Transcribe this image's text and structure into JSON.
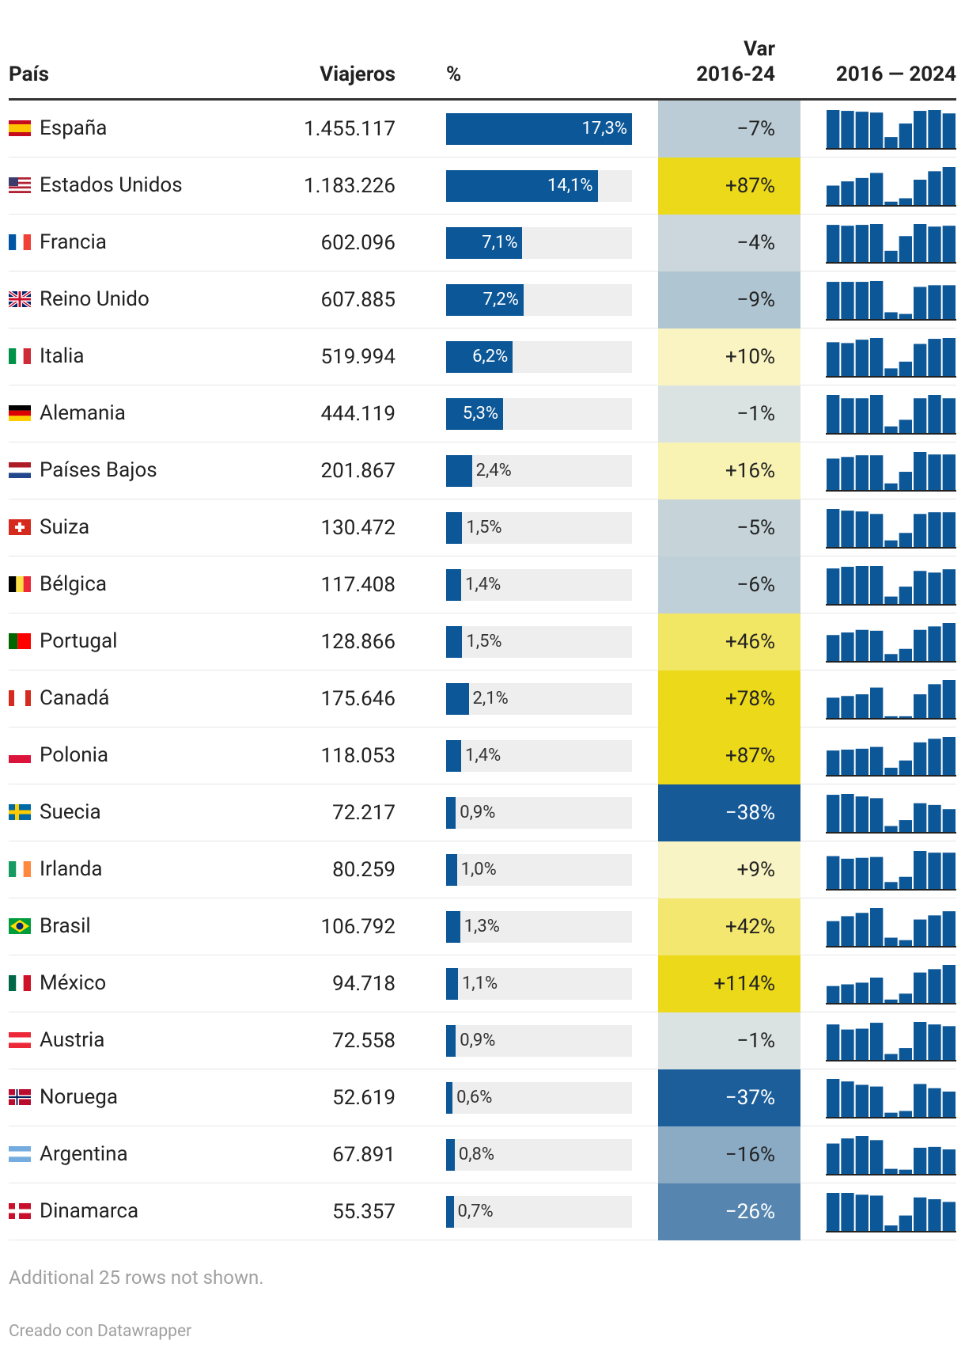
{
  "header": {
    "country": "País",
    "travelers": "Viajeros",
    "pct": "%",
    "var_line1": "Var",
    "var_line2": "2016-24",
    "spark": "2016 — 2024"
  },
  "rows": [
    {
      "country": "España",
      "travelers": "1.455.117",
      "pct": 17.3,
      "pct_label": "17,3%",
      "var": -7,
      "var_label": "−7%",
      "spark": [
        45,
        44,
        43,
        42,
        13,
        29,
        44,
        45,
        41
      ]
    },
    {
      "country": "Estados Unidos",
      "travelers": "1.183.226",
      "pct": 14.1,
      "pct_label": "14,1%",
      "var": 87,
      "var_label": "+87%",
      "spark": [
        23,
        28,
        32,
        38,
        4,
        8,
        30,
        40,
        45
      ]
    },
    {
      "country": "Francia",
      "travelers": "602.096",
      "pct": 7.1,
      "pct_label": "7,1%",
      "var": -4,
      "var_label": "−4%",
      "spark": [
        43,
        42,
        43,
        44,
        13,
        30,
        44,
        41,
        42
      ]
    },
    {
      "country": "Reino Unido",
      "travelers": "607.885",
      "pct": 7.2,
      "pct_label": "7,2%",
      "var": -9,
      "var_label": "−9%",
      "spark": [
        44,
        44,
        44,
        45,
        8,
        6,
        38,
        40,
        40
      ]
    },
    {
      "country": "Italia",
      "travelers": "519.994",
      "pct": 6.2,
      "pct_label": "6,2%",
      "var": 10,
      "var_label": "+10%",
      "spark": [
        40,
        39,
        43,
        45,
        9,
        17,
        38,
        44,
        45
      ]
    },
    {
      "country": "Alemania",
      "travelers": "444.119",
      "pct": 5.3,
      "pct_label": "5,3%",
      "var": -1,
      "var_label": "−1%",
      "spark": [
        46,
        42,
        42,
        46,
        8,
        16,
        42,
        46,
        42
      ]
    },
    {
      "country": "Países Bajos",
      "travelers": "201.867",
      "pct": 2.4,
      "pct_label": "2,4%",
      "var": 16,
      "var_label": "+16%",
      "spark": [
        38,
        40,
        42,
        42,
        8,
        22,
        46,
        43,
        43
      ]
    },
    {
      "country": "Suiza",
      "travelers": "130.472",
      "pct": 1.5,
      "pct_label": "1,5%",
      "var": -5,
      "var_label": "−5%",
      "spark": [
        46,
        44,
        43,
        40,
        8,
        17,
        40,
        42,
        42
      ]
    },
    {
      "country": "Bélgica",
      "travelers": "117.408",
      "pct": 1.4,
      "pct_label": "1,4%",
      "var": -6,
      "var_label": "−6%",
      "spark": [
        43,
        45,
        46,
        46,
        9,
        21,
        40,
        38,
        42
      ]
    },
    {
      "country": "Portugal",
      "travelers": "128.866",
      "pct": 1.5,
      "pct_label": "1,5%",
      "var": 46,
      "var_label": "+46%",
      "spark": [
        30,
        33,
        36,
        35,
        8,
        14,
        36,
        40,
        44
      ]
    },
    {
      "country": "Canadá",
      "travelers": "175.646",
      "pct": 2.1,
      "pct_label": "2,1%",
      "var": 78,
      "var_label": "+78%",
      "spark": [
        24,
        26,
        28,
        36,
        2,
        2,
        28,
        40,
        45
      ]
    },
    {
      "country": "Polonia",
      "travelers": "118.053",
      "pct": 1.4,
      "pct_label": "1,4%",
      "var": 87,
      "var_label": "+87%",
      "spark": [
        27,
        28,
        29,
        31,
        8,
        16,
        36,
        40,
        42
      ]
    },
    {
      "country": "Suecia",
      "travelers": "72.217",
      "pct": 0.9,
      "pct_label": "0,9%",
      "var": -38,
      "var_label": "−38%",
      "spark": [
        44,
        45,
        42,
        40,
        7,
        14,
        34,
        32,
        27
      ]
    },
    {
      "country": "Irlanda",
      "travelers": "80.259",
      "pct": 1.0,
      "pct_label": "1,0%",
      "var": 9,
      "var_label": "+9%",
      "spark": [
        38,
        35,
        36,
        37,
        8,
        14,
        44,
        42,
        42
      ]
    },
    {
      "country": "Brasil",
      "travelers": "106.792",
      "pct": 1.3,
      "pct_label": "1,3%",
      "var": 42,
      "var_label": "+42%",
      "spark": [
        30,
        36,
        40,
        46,
        10,
        7,
        32,
        37,
        42
      ]
    },
    {
      "country": "México",
      "travelers": "94.718",
      "pct": 1.1,
      "pct_label": "1,1%",
      "var": 114,
      "var_label": "+114%",
      "spark": [
        20,
        22,
        24,
        30,
        4,
        11,
        36,
        40,
        45
      ]
    },
    {
      "country": "Austria",
      "travelers": "72.558",
      "pct": 0.9,
      "pct_label": "0,9%",
      "var": -1,
      "var_label": "−1%",
      "spark": [
        42,
        36,
        37,
        44,
        7,
        14,
        45,
        42,
        40
      ]
    },
    {
      "country": "Noruega",
      "travelers": "52.619",
      "pct": 0.6,
      "pct_label": "0,6%",
      "var": -37,
      "var_label": "−37%",
      "spark": [
        45,
        42,
        38,
        36,
        5,
        7,
        39,
        34,
        30
      ]
    },
    {
      "country": "Argentina",
      "travelers": "67.891",
      "pct": 0.8,
      "pct_label": "0,8%",
      "var": -16,
      "var_label": "−16%",
      "spark": [
        36,
        42,
        45,
        40,
        6,
        5,
        31,
        32,
        29
      ]
    },
    {
      "country": "Dinamarca",
      "travelers": "55.357",
      "pct": 0.7,
      "pct_label": "0,7%",
      "var": -26,
      "var_label": "−26%",
      "spark": [
        42,
        42,
        40,
        39,
        6,
        17,
        37,
        35,
        32
      ]
    }
  ],
  "footer": {
    "note": "Additional 25 rows not shown.",
    "credit": "Creado con Datawrapper"
  }
}
